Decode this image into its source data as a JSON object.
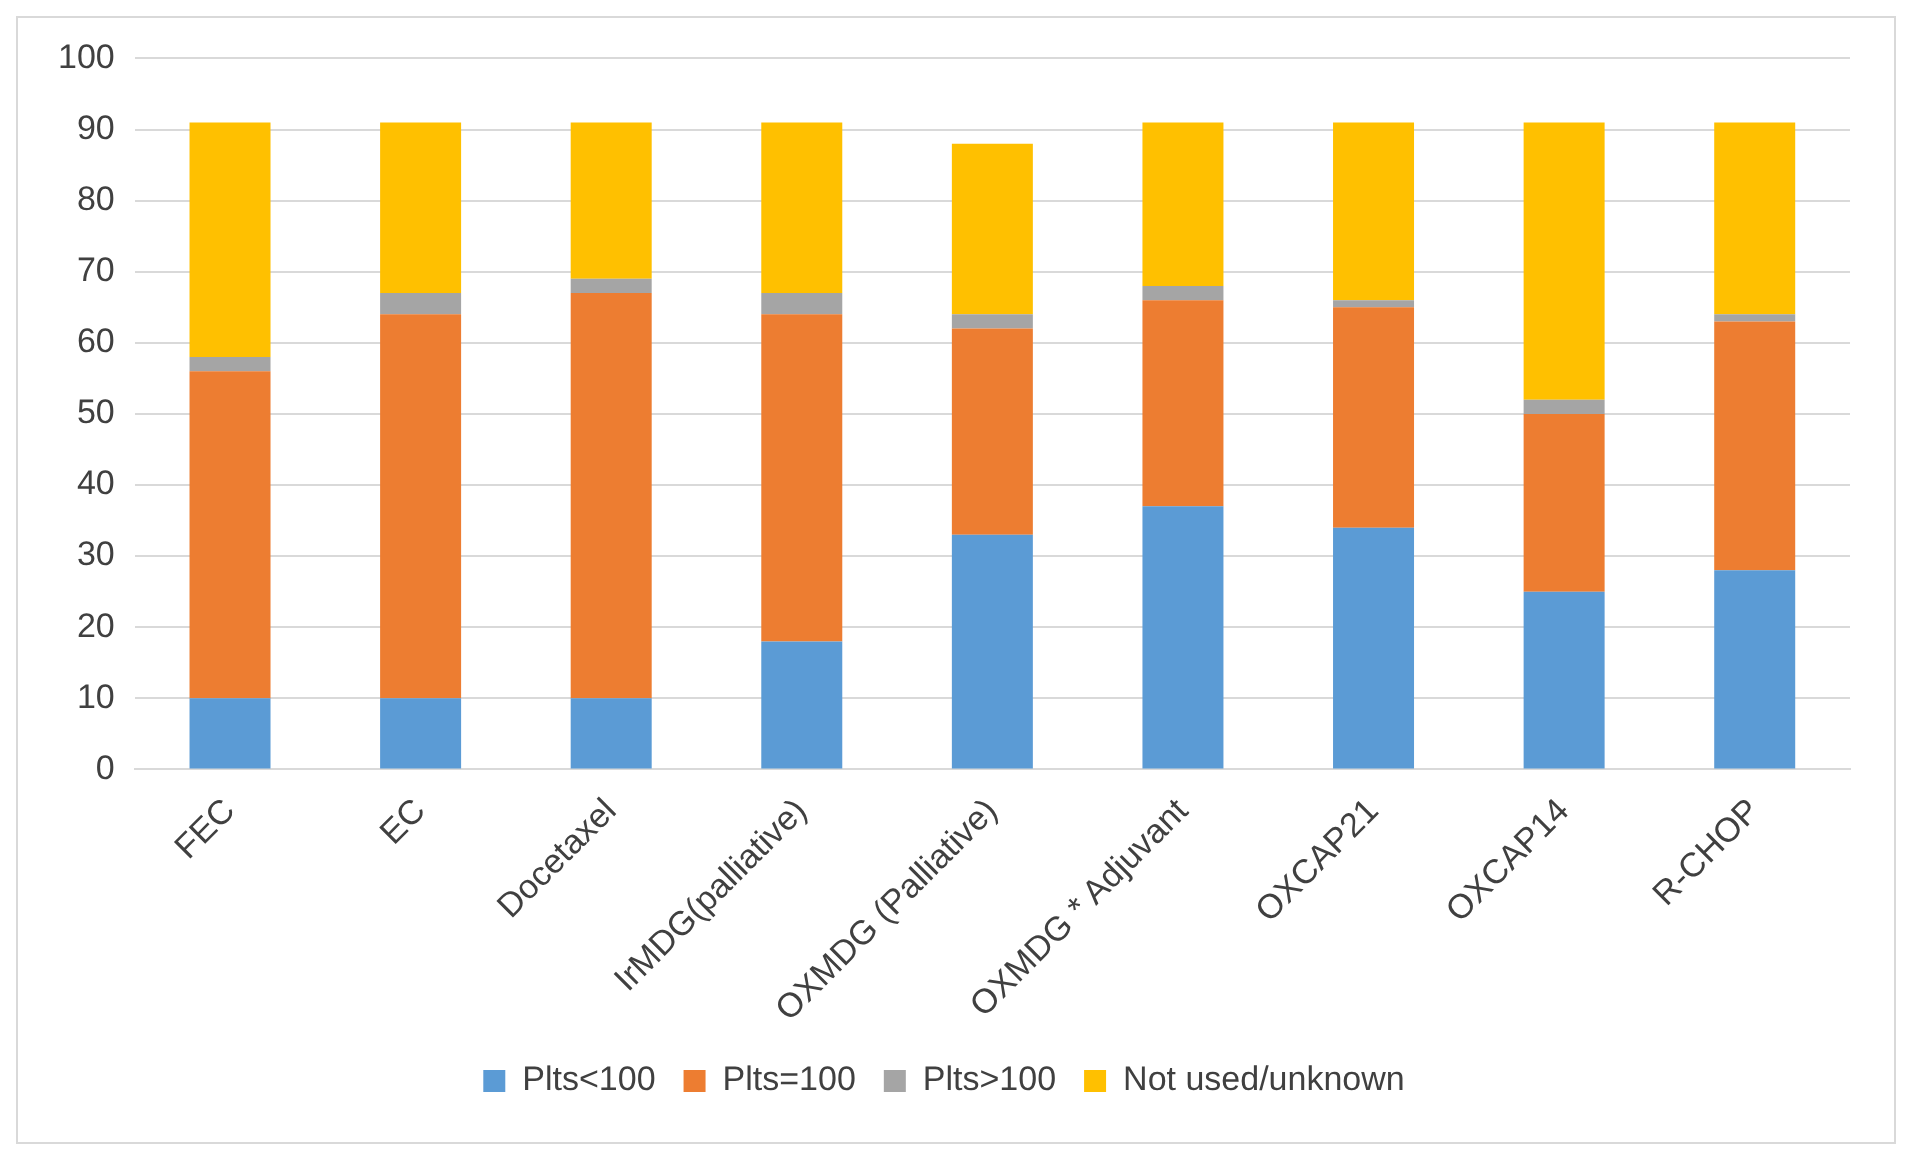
{
  "chart_data": {
    "type": "bar",
    "stacked": true,
    "categories": [
      "FEC",
      "EC",
      "Docetaxel",
      "IrMDG(palliative)",
      "OXMDG (Palliative)",
      "OXMDG * Adjuvant",
      "OXCAP21",
      "OXCAP14",
      "R-CHOP"
    ],
    "series": [
      {
        "name": "Plts<100",
        "color": "#5b9bd5",
        "values": [
          10,
          10,
          10,
          18,
          33,
          37,
          34,
          25,
          28
        ]
      },
      {
        "name": "Plts=100",
        "color": "#ed7d31",
        "values": [
          46,
          54,
          57,
          46,
          29,
          29,
          31,
          25,
          35
        ]
      },
      {
        "name": "Plts>100",
        "color": "#a5a5a5",
        "values": [
          2,
          3,
          2,
          3,
          2,
          2,
          1,
          2,
          1
        ]
      },
      {
        "name": "Not used/unknown",
        "color": "#ffc000",
        "values": [
          33,
          24,
          22,
          24,
          24,
          23,
          25,
          39,
          27
        ]
      }
    ],
    "ylim": [
      0,
      100
    ],
    "yticks": [
      0,
      10,
      20,
      30,
      40,
      50,
      60,
      70,
      80,
      90,
      100
    ],
    "grid": "y",
    "legend": "bottom"
  }
}
